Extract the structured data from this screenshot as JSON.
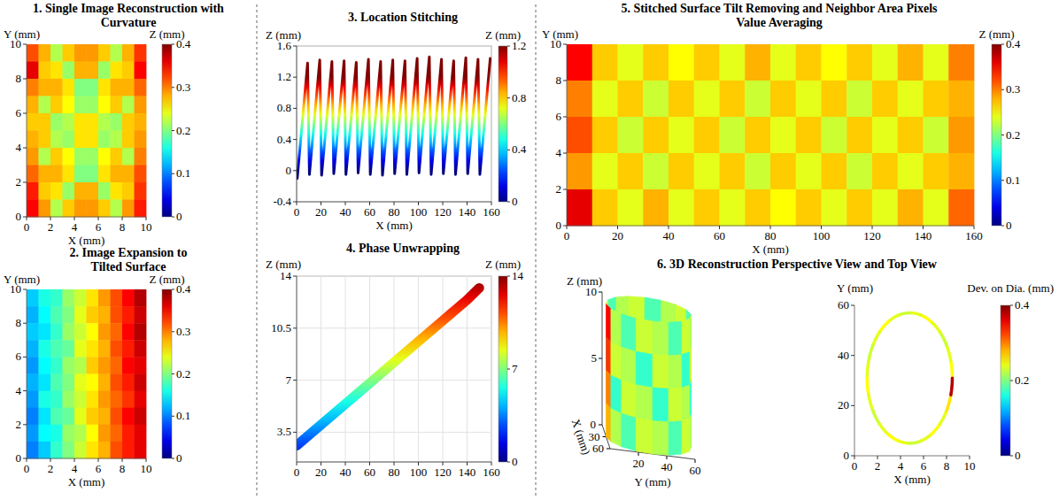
{
  "chart_data": [
    {
      "type": "heatmap",
      "title": "1. Single Image Reconstruction with Curvature",
      "x_label": "X (mm)",
      "y_label": "Y (mm)",
      "colorbar_label": "Z (mm)",
      "xlim": [
        0,
        10
      ],
      "ylim": [
        0,
        10
      ],
      "xticks": [
        0,
        2,
        4,
        6,
        8,
        10
      ],
      "yticks": [
        0,
        2,
        4,
        6,
        8,
        10
      ],
      "colorbar_range": [
        0,
        0.4
      ],
      "colorbar_ticks": [
        0,
        0.1,
        0.2,
        0.3,
        0.4
      ],
      "cells": [
        [
          0.32,
          0.28,
          0.22,
          0.27,
          0.29,
          0.29,
          0.27,
          0.22,
          0.28,
          0.33
        ],
        [
          0.36,
          0.27,
          0.26,
          0.21,
          0.28,
          0.28,
          0.21,
          0.26,
          0.27,
          0.35
        ],
        [
          0.3,
          0.28,
          0.28,
          0.26,
          0.2,
          0.2,
          0.26,
          0.28,
          0.28,
          0.31
        ],
        [
          0.28,
          0.22,
          0.27,
          0.25,
          0.21,
          0.21,
          0.25,
          0.27,
          0.22,
          0.29
        ],
        [
          0.27,
          0.27,
          0.21,
          0.22,
          0.26,
          0.26,
          0.22,
          0.21,
          0.27,
          0.28
        ],
        [
          0.28,
          0.27,
          0.22,
          0.21,
          0.26,
          0.26,
          0.21,
          0.22,
          0.27,
          0.29
        ],
        [
          0.29,
          0.22,
          0.27,
          0.25,
          0.21,
          0.21,
          0.25,
          0.27,
          0.22,
          0.3
        ],
        [
          0.31,
          0.28,
          0.28,
          0.26,
          0.2,
          0.2,
          0.26,
          0.28,
          0.28,
          0.32
        ],
        [
          0.34,
          0.27,
          0.26,
          0.21,
          0.28,
          0.28,
          0.21,
          0.26,
          0.27,
          0.33
        ],
        [
          0.35,
          0.29,
          0.22,
          0.27,
          0.29,
          0.29,
          0.27,
          0.22,
          0.29,
          0.34
        ]
      ]
    },
    {
      "type": "heatmap",
      "title": "2. Image Expansion to Tilted Surface",
      "x_label": "X (mm)",
      "y_label": "Y (mm)",
      "colorbar_label": "Z (mm)",
      "xlim": [
        0,
        10
      ],
      "ylim": [
        0,
        10
      ],
      "xticks": [
        0,
        2,
        4,
        6,
        8,
        10
      ],
      "yticks": [
        0,
        2,
        4,
        6,
        8,
        10
      ],
      "colorbar_range": [
        0,
        0.4
      ],
      "colorbar_ticks": [
        0,
        0.1,
        0.2,
        0.3,
        0.4
      ],
      "cells": [
        [
          0.13,
          0.16,
          0.17,
          0.21,
          0.23,
          0.26,
          0.29,
          0.32,
          0.35,
          0.38
        ],
        [
          0.12,
          0.15,
          0.18,
          0.2,
          0.24,
          0.27,
          0.28,
          0.32,
          0.34,
          0.37
        ],
        [
          0.13,
          0.14,
          0.17,
          0.21,
          0.23,
          0.25,
          0.29,
          0.31,
          0.35,
          0.38
        ],
        [
          0.12,
          0.16,
          0.18,
          0.19,
          0.24,
          0.26,
          0.28,
          0.32,
          0.34,
          0.37
        ],
        [
          0.11,
          0.15,
          0.17,
          0.21,
          0.22,
          0.27,
          0.29,
          0.31,
          0.35,
          0.36
        ],
        [
          0.12,
          0.14,
          0.18,
          0.2,
          0.24,
          0.25,
          0.28,
          0.32,
          0.34,
          0.37
        ],
        [
          0.11,
          0.16,
          0.17,
          0.21,
          0.23,
          0.26,
          0.29,
          0.31,
          0.33,
          0.36
        ],
        [
          0.1,
          0.14,
          0.18,
          0.19,
          0.24,
          0.27,
          0.28,
          0.32,
          0.35,
          0.37
        ],
        [
          0.11,
          0.15,
          0.16,
          0.21,
          0.22,
          0.25,
          0.29,
          0.31,
          0.34,
          0.36
        ],
        [
          0.1,
          0.13,
          0.17,
          0.2,
          0.23,
          0.26,
          0.28,
          0.32,
          0.34,
          0.36
        ]
      ]
    },
    {
      "type": "line",
      "title": "3. Location Stitching",
      "x_label": "X (mm)",
      "y_label": "Z (mm)",
      "colorbar_label": "Z (mm)",
      "xlim": [
        0,
        160
      ],
      "ylim": [
        -0.4,
        1.6
      ],
      "xticks": [
        0,
        20,
        40,
        60,
        80,
        100,
        120,
        140,
        160
      ],
      "yticks": [
        -0.4,
        0,
        0.4,
        0.8,
        1.2,
        1.6
      ],
      "colorbar_range": [
        0,
        1.2
      ],
      "colorbar_ticks": [
        0,
        0.4,
        0.8,
        1.2
      ],
      "x": [
        0.5,
        9,
        10.5,
        19,
        20.5,
        29,
        30.5,
        39,
        40.5,
        49,
        50.5,
        59,
        60.5,
        69,
        70.5,
        79,
        80.5,
        89,
        90.5,
        99,
        100.5,
        109,
        110.5,
        119,
        120.5,
        129,
        130.5,
        139,
        140.5,
        149,
        150.5,
        159
      ],
      "values": [
        -0.1,
        1.38,
        -0.05,
        1.42,
        -0.06,
        1.4,
        -0.04,
        1.41,
        -0.05,
        1.39,
        -0.03,
        1.43,
        -0.05,
        1.4,
        -0.06,
        1.42,
        -0.04,
        1.41,
        -0.05,
        1.44,
        -0.03,
        1.46,
        -0.05,
        1.43,
        -0.04,
        1.41,
        -0.05,
        1.45,
        -0.04,
        1.43,
        -0.05,
        1.44
      ]
    },
    {
      "type": "line",
      "title": "4. Phase Unwrapping",
      "y_label": "Z (mm)",
      "colorbar_label": "Z (mm)",
      "grid": true,
      "xlim": [
        0,
        160
      ],
      "ylim": [
        1.5,
        14
      ],
      "xticks": [
        0,
        20,
        40,
        60,
        80,
        100,
        120,
        140,
        160
      ],
      "yticks": [
        3.5,
        7,
        10.5,
        14
      ],
      "colorbar_range": [
        0,
        14
      ],
      "colorbar_ticks": [
        0,
        7,
        14
      ],
      "x": [
        0,
        10,
        20,
        30,
        40,
        50,
        60,
        70,
        80,
        90,
        100,
        110,
        120,
        130,
        140,
        150
      ],
      "values": [
        2.6,
        3.3,
        4.0,
        4.7,
        5.4,
        6.1,
        6.8,
        7.5,
        8.2,
        8.9,
        9.6,
        10.3,
        11.0,
        11.7,
        12.4,
        13.2
      ]
    },
    {
      "type": "heatmap",
      "title": "5. Stitched Surface Tilt Removing and Neighbor Area Pixels Value Averaging",
      "x_label": "X (mm)",
      "y_label": "Y (mm)",
      "colorbar_label": "Z (mm)",
      "xlim": [
        0,
        160
      ],
      "ylim": [
        0,
        10
      ],
      "xticks": [
        0,
        20,
        40,
        60,
        80,
        100,
        120,
        140,
        160
      ],
      "yticks": [
        0,
        2,
        4,
        6,
        8,
        10
      ],
      "colorbar_range": [
        0,
        0.4
      ],
      "colorbar_ticks": [
        0,
        0.1,
        0.2,
        0.3,
        0.4
      ],
      "cells": [
        [
          0.35,
          0.27,
          0.24,
          0.27,
          0.25,
          0.27,
          0.24,
          0.28,
          0.24,
          0.27,
          0.25,
          0.27,
          0.24,
          0.28,
          0.24,
          0.3
        ],
        [
          0.3,
          0.24,
          0.27,
          0.23,
          0.27,
          0.24,
          0.27,
          0.23,
          0.27,
          0.24,
          0.27,
          0.23,
          0.27,
          0.24,
          0.27,
          0.28
        ],
        [
          0.32,
          0.27,
          0.23,
          0.27,
          0.24,
          0.27,
          0.23,
          0.27,
          0.24,
          0.27,
          0.23,
          0.27,
          0.24,
          0.27,
          0.23,
          0.29
        ],
        [
          0.29,
          0.24,
          0.27,
          0.23,
          0.27,
          0.24,
          0.27,
          0.23,
          0.27,
          0.24,
          0.27,
          0.23,
          0.27,
          0.24,
          0.27,
          0.28
        ],
        [
          0.36,
          0.27,
          0.24,
          0.28,
          0.24,
          0.27,
          0.24,
          0.27,
          0.25,
          0.27,
          0.24,
          0.27,
          0.24,
          0.28,
          0.24,
          0.31
        ]
      ]
    },
    {
      "type": "3d_cylinder",
      "title": "6. 3D Reconstruction Perspective View and Top View",
      "perspective": {
        "x_label": "X (mm)",
        "y_label": "Y (mm)",
        "z_label": "Z (mm)",
        "xlim": [
          0,
          60
        ],
        "ylim": [
          0,
          60
        ],
        "zlim": [
          0,
          10
        ],
        "xticks": [
          0,
          30,
          60
        ],
        "yticks": [
          20,
          40,
          60
        ],
        "zticks": [
          5,
          10
        ],
        "center": [
          30,
          30
        ],
        "radius": 30,
        "height": 10,
        "cells": [
          [
            0.22,
            0.18,
            0.23,
            0.22,
            0.18,
            0.23,
            0.22,
            0.18,
            0.23,
            0.22,
            0.18,
            0.23,
            0.35,
            0.22,
            0.18,
            0.23
          ],
          [
            0.23,
            0.22,
            0.17,
            0.23,
            0.22,
            0.17,
            0.23,
            0.22,
            0.17,
            0.23,
            0.22,
            0.17,
            0.33,
            0.23,
            0.22,
            0.17
          ],
          [
            0.17,
            0.23,
            0.22,
            0.17,
            0.23,
            0.22,
            0.17,
            0.23,
            0.22,
            0.17,
            0.23,
            0.22,
            0.3,
            0.17,
            0.23,
            0.22
          ],
          [
            0.22,
            0.18,
            0.23,
            0.22,
            0.18,
            0.23,
            0.22,
            0.18,
            0.23,
            0.22,
            0.18,
            0.23,
            0.28,
            0.22,
            0.18,
            0.23
          ]
        ]
      },
      "top_view": {
        "x_label": "X (mm)",
        "y_label": "Y (mm)",
        "colorbar_label": "Dev. on Dia. (mm)",
        "xlim": [
          0,
          10
        ],
        "ylim": [
          0,
          60
        ],
        "xticks": [
          0,
          2,
          4,
          6,
          8,
          10
        ],
        "yticks": [
          0,
          20,
          40,
          60
        ],
        "colorbar_range": [
          0,
          0.4
        ],
        "colorbar_ticks": [
          0,
          0.2,
          0.4
        ],
        "ring": {
          "cx": 4.8,
          "cy": 31,
          "rx": 3.7,
          "ry": 26,
          "values": [
            0.25,
            0.24,
            0.23,
            0.24,
            0.25,
            0.24,
            0.23,
            0.24,
            0.25,
            0.24,
            0.23,
            0.24,
            0.25,
            0.24,
            0.23,
            0.24,
            0.25,
            0.24,
            0.23,
            0.24,
            0.25,
            0.24,
            0.26,
            0.38
          ]
        }
      }
    }
  ]
}
